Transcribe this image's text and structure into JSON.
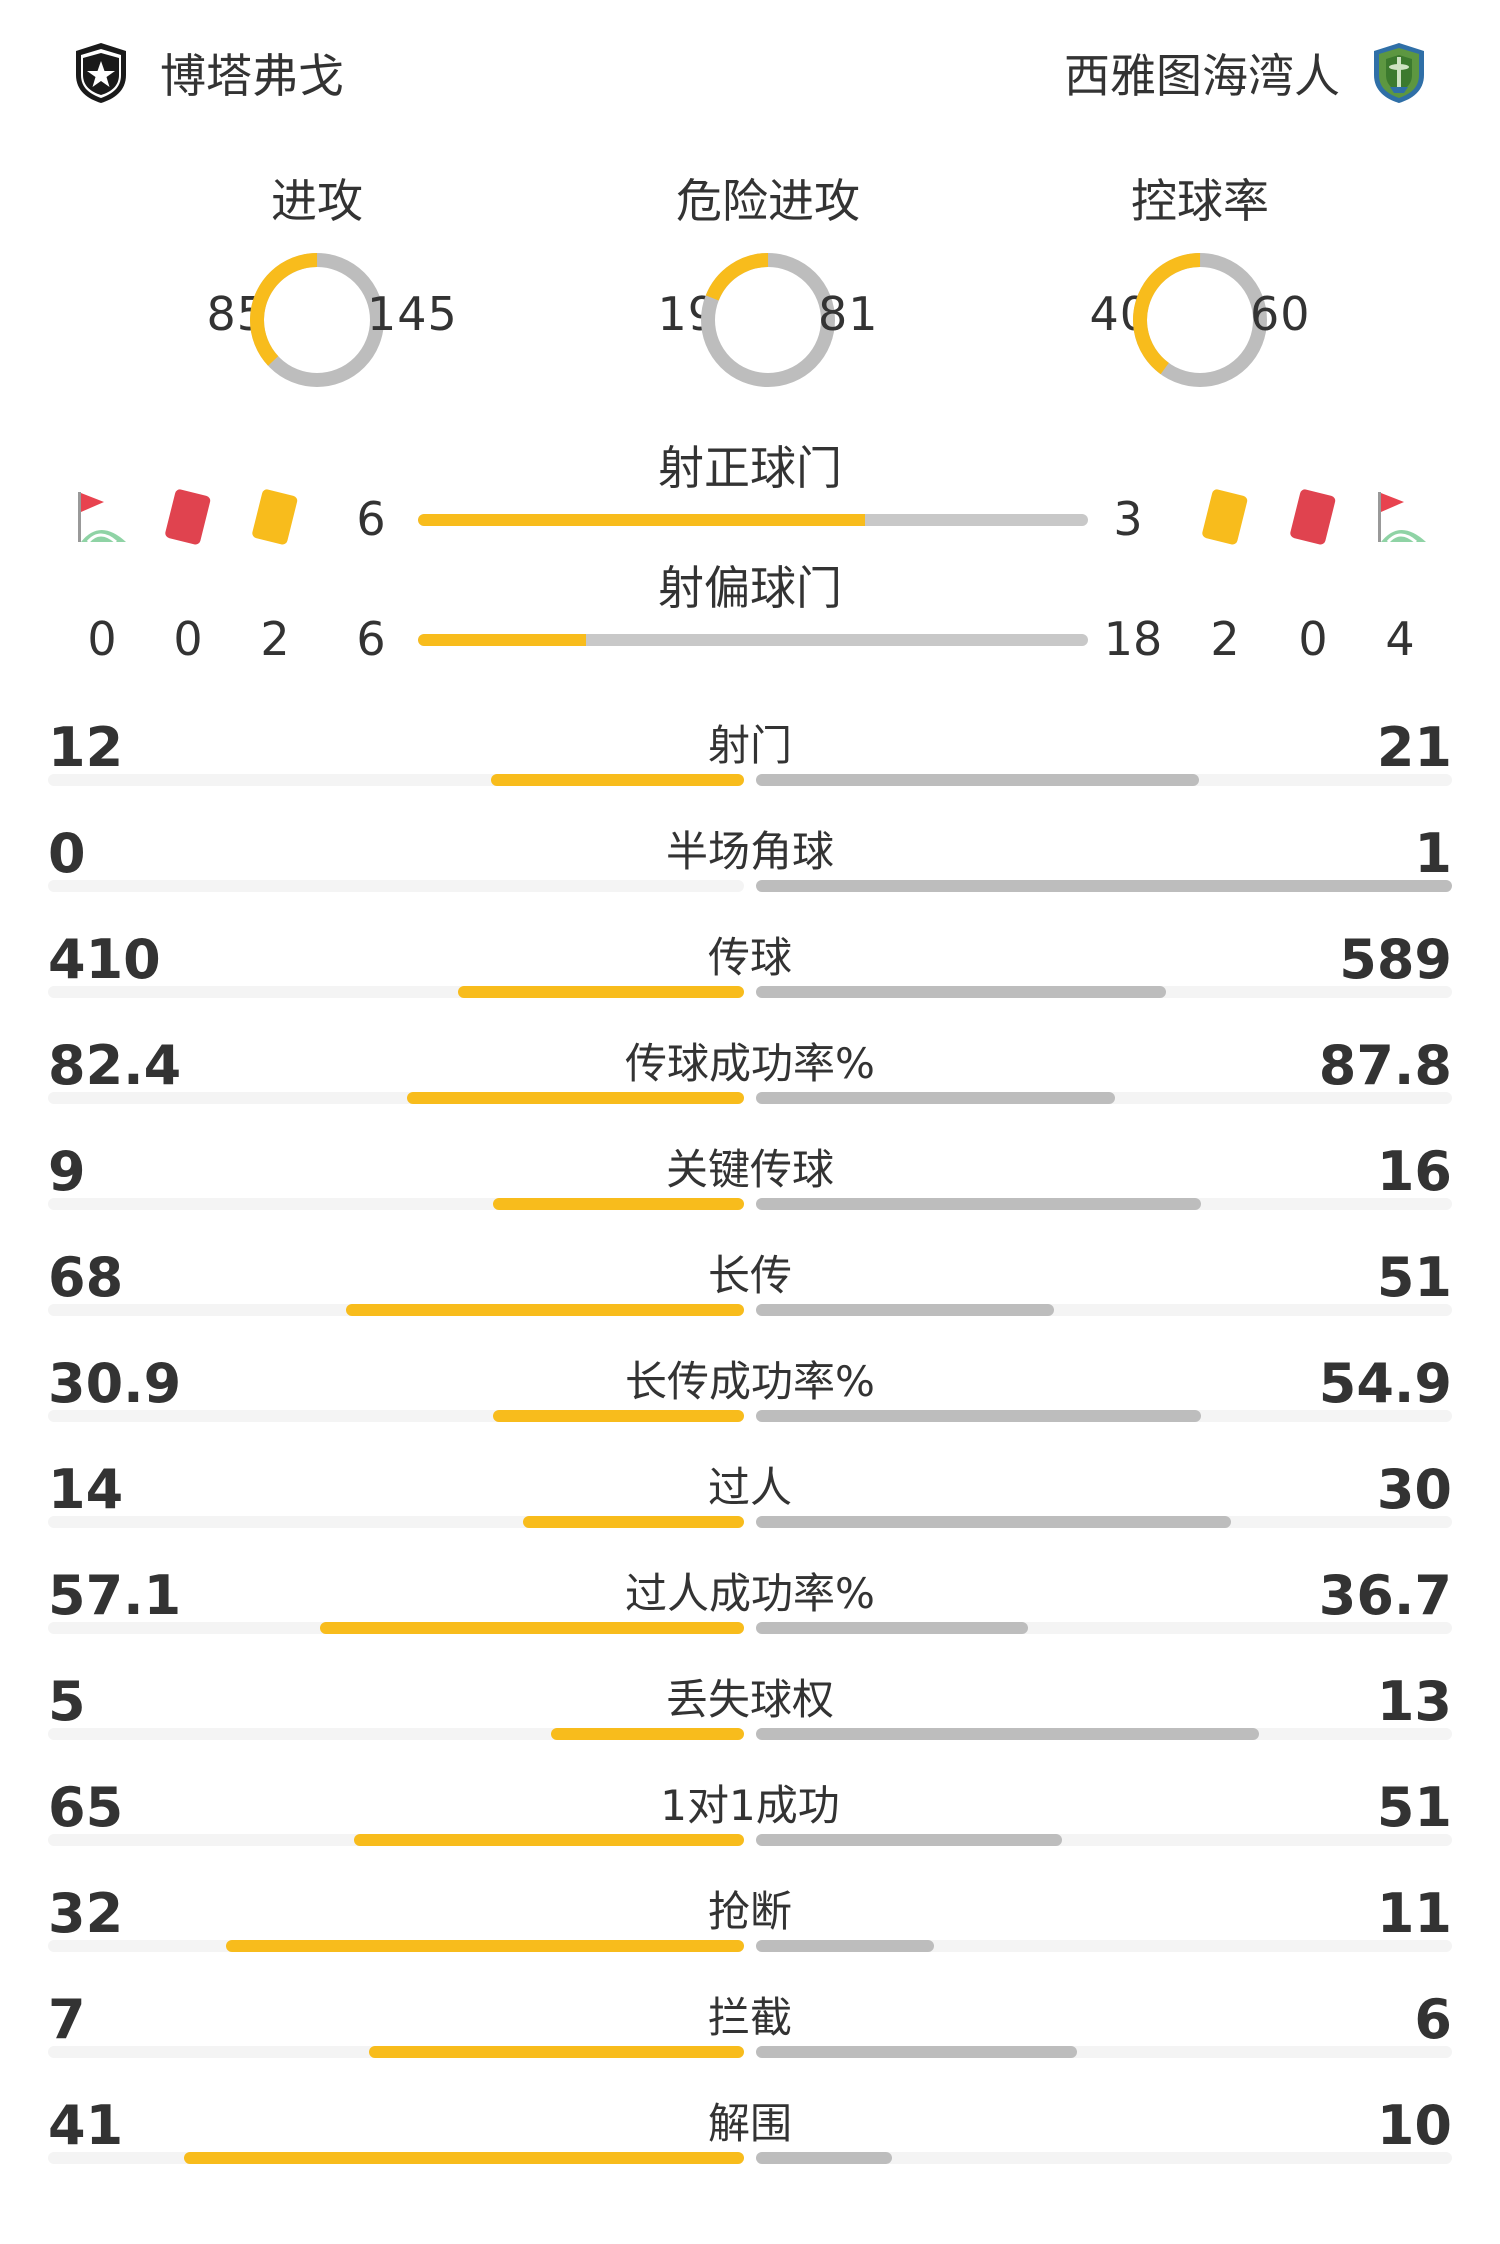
{
  "home_team": {
    "name": "博塔弗戈",
    "crest_icon": "botafogo-star-crest-icon"
  },
  "away_team": {
    "name": "西雅图海湾人",
    "crest_icon": "seattle-sounders-crest-icon"
  },
  "colors": {
    "home": "#f8bc1c",
    "away": "#bdbdbd",
    "text": "#333333"
  },
  "donuts": [
    {
      "title": "进攻",
      "home": "85",
      "away": "145",
      "home_value": 85,
      "away_value": 145
    },
    {
      "title": "危险进攻",
      "home": "19",
      "away": "81",
      "home_value": 19,
      "away_value": 81
    },
    {
      "title": "控球率",
      "home": "40",
      "away": "60",
      "home_value": 40,
      "away_value": 60
    }
  ],
  "shots_on": {
    "title": "射正球门",
    "home": "6",
    "away": "3",
    "home_value": 6,
    "away_value": 3
  },
  "shots_off": {
    "title": "射偏球门",
    "home": "6",
    "away": "18",
    "home_value": 6,
    "away_value": 18
  },
  "home_counts": {
    "corners": "0",
    "red_cards": "0",
    "yellow_cards": "2"
  },
  "away_counts": {
    "yellow_cards": "2",
    "red_cards": "0",
    "corners": "4"
  },
  "stats": [
    {
      "label": "射门",
      "home": "12",
      "away": "21",
      "home_value": 12,
      "away_value": 21
    },
    {
      "label": "半场角球",
      "home": "0",
      "away": "1",
      "home_value": 0,
      "away_value": 1
    },
    {
      "label": "传球",
      "home": "410",
      "away": "589",
      "home_value": 410,
      "away_value": 589
    },
    {
      "label": "传球成功率%",
      "home": "82.4",
      "away": "87.8",
      "home_value": 82.4,
      "away_value": 87.8
    },
    {
      "label": "关键传球",
      "home": "9",
      "away": "16",
      "home_value": 9,
      "away_value": 16
    },
    {
      "label": "长传",
      "home": "68",
      "away": "51",
      "home_value": 68,
      "away_value": 51
    },
    {
      "label": "长传成功率%",
      "home": "30.9",
      "away": "54.9",
      "home_value": 30.9,
      "away_value": 54.9
    },
    {
      "label": "过人",
      "home": "14",
      "away": "30",
      "home_value": 14,
      "away_value": 30
    },
    {
      "label": "过人成功率%",
      "home": "57.1",
      "away": "36.7",
      "home_value": 57.1,
      "away_value": 36.7
    },
    {
      "label": "丢失球权",
      "home": "5",
      "away": "13",
      "home_value": 5,
      "away_value": 13
    },
    {
      "label": "1对1成功",
      "home": "65",
      "away": "51",
      "home_value": 65,
      "away_value": 51
    },
    {
      "label": "抢断",
      "home": "32",
      "away": "11",
      "home_value": 32,
      "away_value": 11
    },
    {
      "label": "拦截",
      "home": "7",
      "away": "6",
      "home_value": 7,
      "away_value": 6
    },
    {
      "label": "解围",
      "home": "41",
      "away": "10",
      "home_value": 41,
      "away_value": 10
    }
  ]
}
